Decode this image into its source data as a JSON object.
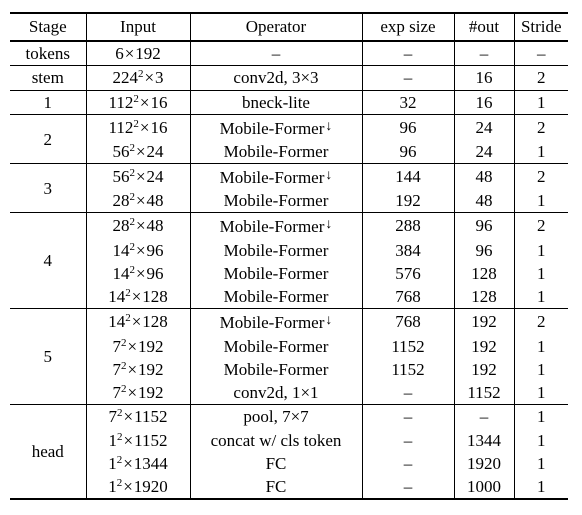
{
  "headers": [
    "Stage",
    "Input",
    "Operator",
    "exp size",
    "#out",
    "Stride"
  ],
  "groups": [
    {
      "stage": "tokens",
      "rows": [
        {
          "input_base": "6",
          "input_exp": "",
          "input_rest": "192",
          "operator": "–",
          "down": false,
          "exp": "–",
          "out": "–",
          "stride": "–"
        }
      ]
    },
    {
      "stage": "stem",
      "rows": [
        {
          "input_base": "224",
          "input_exp": "2",
          "input_rest": "3",
          "operator": "conv2d, 3×3",
          "down": false,
          "exp": "–",
          "out": "16",
          "stride": "2"
        }
      ]
    },
    {
      "stage": "1",
      "rows": [
        {
          "input_base": "112",
          "input_exp": "2",
          "input_rest": "16",
          "operator": "bneck-lite",
          "down": false,
          "exp": "32",
          "out": "16",
          "stride": "1"
        }
      ]
    },
    {
      "stage": "2",
      "rows": [
        {
          "input_base": "112",
          "input_exp": "2",
          "input_rest": "16",
          "operator": "Mobile-Former",
          "down": true,
          "exp": "96",
          "out": "24",
          "stride": "2"
        },
        {
          "input_base": "56",
          "input_exp": "2",
          "input_rest": "24",
          "operator": "Mobile-Former",
          "down": false,
          "exp": "96",
          "out": "24",
          "stride": "1"
        }
      ]
    },
    {
      "stage": "3",
      "rows": [
        {
          "input_base": "56",
          "input_exp": "2",
          "input_rest": "24",
          "operator": "Mobile-Former",
          "down": true,
          "exp": "144",
          "out": "48",
          "stride": "2"
        },
        {
          "input_base": "28",
          "input_exp": "2",
          "input_rest": "48",
          "operator": "Mobile-Former",
          "down": false,
          "exp": "192",
          "out": "48",
          "stride": "1"
        }
      ]
    },
    {
      "stage": "4",
      "rows": [
        {
          "input_base": "28",
          "input_exp": "2",
          "input_rest": "48",
          "operator": "Mobile-Former",
          "down": true,
          "exp": "288",
          "out": "96",
          "stride": "2"
        },
        {
          "input_base": "14",
          "input_exp": "2",
          "input_rest": "96",
          "operator": "Mobile-Former",
          "down": false,
          "exp": "384",
          "out": "96",
          "stride": "1"
        },
        {
          "input_base": "14",
          "input_exp": "2",
          "input_rest": "96",
          "operator": "Mobile-Former",
          "down": false,
          "exp": "576",
          "out": "128",
          "stride": "1"
        },
        {
          "input_base": "14",
          "input_exp": "2",
          "input_rest": "128",
          "operator": "Mobile-Former",
          "down": false,
          "exp": "768",
          "out": "128",
          "stride": "1"
        }
      ]
    },
    {
      "stage": "5",
      "rows": [
        {
          "input_base": "14",
          "input_exp": "2",
          "input_rest": "128",
          "operator": "Mobile-Former",
          "down": true,
          "exp": "768",
          "out": "192",
          "stride": "2"
        },
        {
          "input_base": "7",
          "input_exp": "2",
          "input_rest": "192",
          "operator": "Mobile-Former",
          "down": false,
          "exp": "1152",
          "out": "192",
          "stride": "1"
        },
        {
          "input_base": "7",
          "input_exp": "2",
          "input_rest": "192",
          "operator": "Mobile-Former",
          "down": false,
          "exp": "1152",
          "out": "192",
          "stride": "1"
        },
        {
          "input_base": "7",
          "input_exp": "2",
          "input_rest": "192",
          "operator": "conv2d, 1×1",
          "down": false,
          "exp": "–",
          "out": "1152",
          "stride": "1"
        }
      ]
    },
    {
      "stage": "head",
      "rows": [
        {
          "input_base": "7",
          "input_exp": "2",
          "input_rest": "1152",
          "operator": "pool, 7×7",
          "down": false,
          "exp": "–",
          "out": "–",
          "stride": "1"
        },
        {
          "input_base": "1",
          "input_exp": "2",
          "input_rest": "1152",
          "operator": "concat w/ cls token",
          "down": false,
          "exp": "–",
          "out": "1344",
          "stride": "1"
        },
        {
          "input_base": "1",
          "input_exp": "2",
          "input_rest": "1344",
          "operator": "FC",
          "down": false,
          "exp": "–",
          "out": "1920",
          "stride": "1"
        },
        {
          "input_base": "1",
          "input_exp": "2",
          "input_rest": "1920",
          "operator": "FC",
          "down": false,
          "exp": "–",
          "out": "1000",
          "stride": "1"
        }
      ]
    }
  ]
}
